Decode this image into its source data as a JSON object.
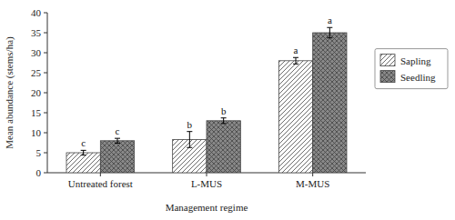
{
  "chart_data": {
    "type": "bar",
    "categories": [
      "Untreated forest",
      "L-MUS",
      "M-MUS"
    ],
    "series": [
      {
        "name": "Sapling",
        "color": "#ffffff",
        "values": [
          5.0,
          8.3,
          28.0
        ],
        "errors": [
          0.6,
          2.0,
          0.8
        ],
        "labels": [
          "c",
          "b",
          "a"
        ]
      },
      {
        "name": "Seedling",
        "color": "#888888",
        "values": [
          8.0,
          13.0,
          35.0
        ],
        "errors": [
          0.6,
          0.7,
          1.3
        ],
        "labels": [
          "c",
          "b",
          "a"
        ]
      }
    ],
    "xlabel": "Management regime",
    "ylabel": "Mean abundance (stems/ha)",
    "ylim": [
      0,
      40
    ],
    "yticks": [
      0,
      5,
      10,
      15,
      20,
      25,
      30,
      35,
      40
    ],
    "grid": false,
    "legend": "right"
  }
}
